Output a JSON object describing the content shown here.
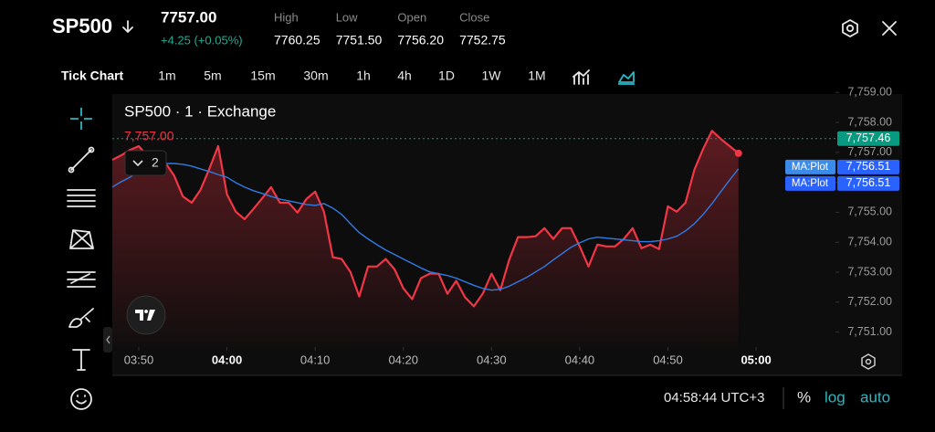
{
  "header": {
    "symbol": "SP500",
    "price": "7757.00",
    "change": "+4.25 (+0.05%)",
    "stats": [
      {
        "label": "High",
        "value": "7760.25"
      },
      {
        "label": "Low",
        "value": "7751.50"
      },
      {
        "label": "Open",
        "value": "7756.20"
      },
      {
        "label": "Close",
        "value": "7752.75"
      }
    ]
  },
  "toolbar": {
    "mode": "Tick Chart",
    "intervals": [
      "1m",
      "5m",
      "15m",
      "30m",
      "1h",
      "4h",
      "1D",
      "1W",
      "1M"
    ]
  },
  "chart_data": {
    "type": "line",
    "title": "SP500 · 1 · Exchange",
    "price_label": "7,757.00",
    "indicator_count": "2",
    "x": [
      "03:47",
      "03:48",
      "03:49",
      "03:50",
      "03:51",
      "03:52",
      "03:53",
      "03:54",
      "03:55",
      "03:56",
      "03:57",
      "03:58",
      "03:59",
      "04:00",
      "04:01",
      "04:02",
      "04:03",
      "04:04",
      "04:05",
      "04:06",
      "04:07",
      "04:08",
      "04:09",
      "04:10",
      "04:11",
      "04:12",
      "04:13",
      "04:14",
      "04:15",
      "04:16",
      "04:17",
      "04:18",
      "04:19",
      "04:20",
      "04:21",
      "04:22",
      "04:23",
      "04:24",
      "04:25",
      "04:26",
      "04:27",
      "04:28",
      "04:29",
      "04:30",
      "04:31",
      "04:32",
      "04:33",
      "04:34",
      "04:35",
      "04:36",
      "04:37",
      "04:38",
      "04:39",
      "04:40",
      "04:41",
      "04:42",
      "04:43",
      "04:44",
      "04:45",
      "04:46",
      "04:47",
      "04:48",
      "04:49",
      "04:50",
      "04:51",
      "04:52",
      "04:53",
      "04:54",
      "04:55",
      "04:56",
      "04:57",
      "04:58"
    ],
    "series": [
      {
        "name": "SP500",
        "color": "#f23645",
        "values": [
          7756.75,
          7756.9,
          7757.08,
          7757.21,
          7756.87,
          7757.02,
          7756.66,
          7756.23,
          7755.53,
          7755.32,
          7755.75,
          7756.45,
          7757.21,
          7755.6,
          7755.02,
          7754.77,
          7755.11,
          7755.47,
          7755.84,
          7755.32,
          7755.32,
          7754.99,
          7755.44,
          7755.69,
          7755.02,
          7753.5,
          7753.44,
          7753.01,
          7752.19,
          7753.19,
          7753.19,
          7753.44,
          7753.1,
          7752.46,
          7752.1,
          7752.8,
          7752.95,
          7752.95,
          7752.28,
          7752.71,
          7752.16,
          7751.86,
          7752.28,
          7752.95,
          7752.4,
          7753.41,
          7754.17,
          7754.17,
          7754.2,
          7754.47,
          7754.11,
          7754.47,
          7754.47,
          7753.86,
          7753.19,
          7753.92,
          7753.86,
          7753.86,
          7754.11,
          7754.47,
          7753.8,
          7753.92,
          7753.77,
          7755.2,
          7755.02,
          7755.32,
          7756.42,
          7757.12,
          7757.72,
          7757.45,
          7757.21,
          7756.97
        ]
      },
      {
        "name": "MA",
        "color": "#2f7be5",
        "values": [
          7755.84,
          7756.02,
          7756.17,
          7756.36,
          7756.51,
          7756.6,
          7756.63,
          7756.63,
          7756.6,
          7756.54,
          7756.45,
          7756.36,
          7756.26,
          7756.17,
          7755.99,
          7755.84,
          7755.72,
          7755.63,
          7755.53,
          7755.44,
          7755.38,
          7755.32,
          7755.26,
          7755.23,
          7755.29,
          7755.14,
          7754.93,
          7754.62,
          7754.32,
          7754.11,
          7753.92,
          7753.74,
          7753.59,
          7753.44,
          7753.29,
          7753.14,
          7753.01,
          7752.95,
          7752.89,
          7752.8,
          7752.68,
          7752.56,
          7752.46,
          7752.4,
          7752.43,
          7752.53,
          7752.68,
          7752.83,
          7753.01,
          7753.19,
          7753.41,
          7753.62,
          7753.83,
          7753.98,
          7754.11,
          7754.17,
          7754.14,
          7754.11,
          7754.08,
          7754.05,
          7754.02,
          7754.02,
          7754.05,
          7754.11,
          7754.2,
          7754.38,
          7754.62,
          7754.93,
          7755.29,
          7755.69,
          7756.08,
          7756.45
        ]
      }
    ],
    "xlim": [
      "03:47",
      "05:09"
    ],
    "xticks": [
      "03:50",
      "04:00",
      "04:10",
      "04:20",
      "04:30",
      "04:40",
      "04:50",
      "05:00"
    ],
    "ylim": [
      7750.5,
      7759.1
    ],
    "yticks": [
      {
        "value": 7759,
        "label": "7,759.00"
      },
      {
        "value": 7758,
        "label": "7,758.00"
      },
      {
        "value": 7757,
        "label": "7,757.00"
      },
      {
        "value": 7756,
        "label": "7,756.00"
      },
      {
        "value": 7755,
        "label": "7,755.00"
      },
      {
        "value": 7754,
        "label": "7,754.00"
      },
      {
        "value": 7753,
        "label": "7,753.00"
      },
      {
        "value": 7752,
        "label": "7,752.00"
      },
      {
        "value": 7751,
        "label": "7,751.00"
      }
    ],
    "price_tags": [
      {
        "value": 7757.46,
        "label": "7,757.46",
        "color": "#089981"
      },
      {
        "name": "MA:Plot",
        "value": 7756.51,
        "label": "7,756.51",
        "color": "#2962ff"
      },
      {
        "name": "MA:Plot",
        "value": 7756.51,
        "label": "7,756.51",
        "color": "#2962ff"
      }
    ]
  },
  "footer": {
    "clock": "04:58:44 UTC+3",
    "percent": "%",
    "log": "log",
    "auto": "auto"
  }
}
